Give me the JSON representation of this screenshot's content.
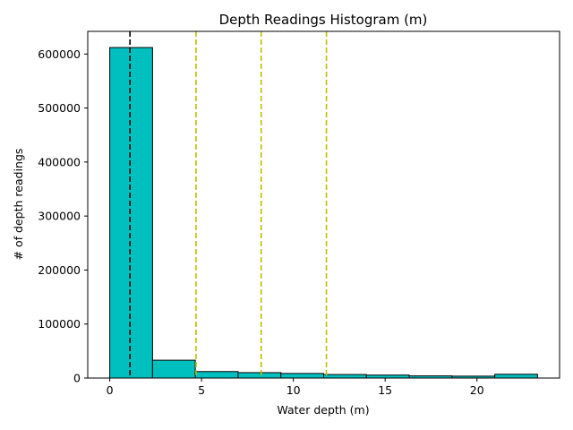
{
  "chart_data": {
    "type": "bar",
    "title": "Depth Readings Histogram (m)",
    "xlabel": "Water depth (m)",
    "ylabel": "# of depth readings",
    "xlim": [
      -1.2,
      24.5
    ],
    "ylim": [
      0,
      642000
    ],
    "x_ticks": [
      0,
      5,
      10,
      15,
      20
    ],
    "x_tick_labels": [
      "0",
      "5",
      "10",
      "15",
      "20"
    ],
    "y_ticks": [
      0,
      100000,
      200000,
      300000,
      400000,
      500000,
      600000
    ],
    "y_tick_labels": [
      "0",
      "100000",
      "200000",
      "300000",
      "400000",
      "500000",
      "600000"
    ],
    "bins": [
      {
        "start": 0.0,
        "end": 2.33,
        "count": 612000
      },
      {
        "start": 2.33,
        "end": 4.66,
        "count": 33000
      },
      {
        "start": 4.66,
        "end": 6.99,
        "count": 12000
      },
      {
        "start": 6.99,
        "end": 9.32,
        "count": 10000
      },
      {
        "start": 9.32,
        "end": 11.65,
        "count": 8500
      },
      {
        "start": 11.65,
        "end": 13.98,
        "count": 6500
      },
      {
        "start": 13.98,
        "end": 16.31,
        "count": 5500
      },
      {
        "start": 16.31,
        "end": 18.64,
        "count": 4000
      },
      {
        "start": 18.64,
        "end": 20.97,
        "count": 3500
      },
      {
        "start": 20.97,
        "end": 23.3,
        "count": 7000
      }
    ],
    "reference_lines": [
      {
        "x": 1.1,
        "color": "#000000",
        "style": "dashed"
      },
      {
        "x": 4.7,
        "color": "#bfbf00",
        "style": "dashed"
      },
      {
        "x": 8.25,
        "color": "#bfbf00",
        "style": "dashed"
      },
      {
        "x": 11.8,
        "color": "#bfbf00",
        "style": "dashed"
      }
    ],
    "bar_color": "#00bfbf",
    "bar_edge_color": "#000000",
    "grid": false
  }
}
